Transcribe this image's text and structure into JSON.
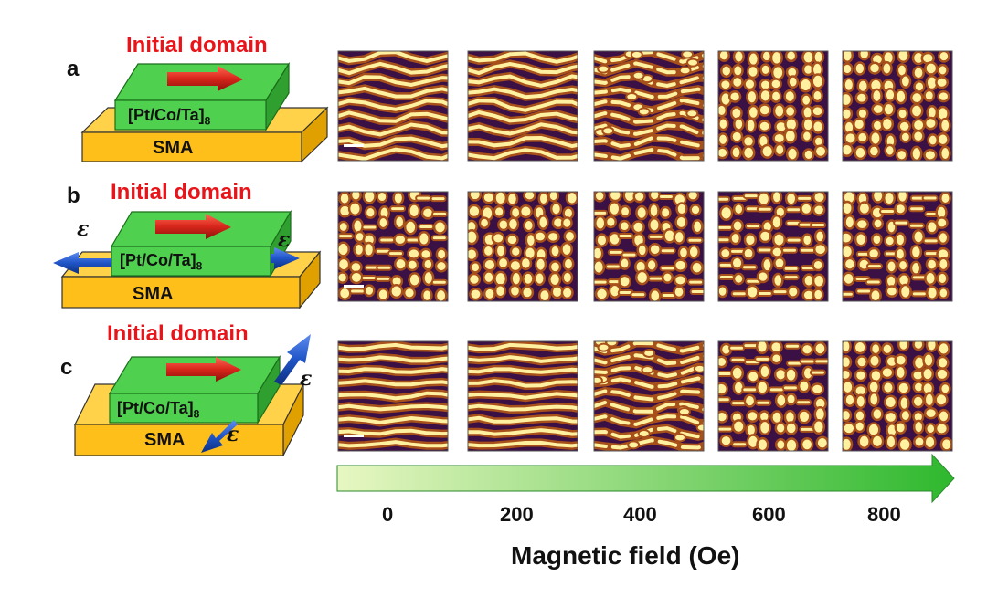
{
  "figure": {
    "panels": [
      {
        "label": "a",
        "title": "Initial domain",
        "layer": "[Pt/Co/Ta]",
        "layer_sub": "8",
        "substrate": "SMA",
        "strain": "none",
        "images": [
          {
            "field": "0",
            "pattern": "stripe-wavy"
          },
          {
            "field": "200",
            "pattern": "stripe-wavy"
          },
          {
            "field": "400",
            "pattern": "stripe-broken"
          },
          {
            "field": "600",
            "pattern": "bubble"
          },
          {
            "field": "800",
            "pattern": "bubble"
          }
        ]
      },
      {
        "label": "b",
        "title": "Initial domain",
        "layer": "[Pt/Co/Ta]",
        "layer_sub": "8",
        "substrate": "SMA",
        "strain": "uniaxial-horizontal",
        "strain_symbol": "ε",
        "images": [
          {
            "field": "0",
            "pattern": "bubble-mixed"
          },
          {
            "field": "200",
            "pattern": "bubble"
          },
          {
            "field": "400",
            "pattern": "bubble-mixed"
          },
          {
            "field": "600",
            "pattern": "bubble-mixed"
          },
          {
            "field": "800",
            "pattern": "bubble-mixed"
          }
        ]
      },
      {
        "label": "c",
        "title": "Initial domain",
        "layer": "[Pt/Co/Ta]",
        "layer_sub": "8",
        "substrate": "SMA",
        "strain": "uniaxial-transverse",
        "strain_symbol": "ε",
        "images": [
          {
            "field": "0",
            "pattern": "stripe-straight"
          },
          {
            "field": "200",
            "pattern": "stripe-straight"
          },
          {
            "field": "400",
            "pattern": "stripe-broken"
          },
          {
            "field": "600",
            "pattern": "bubble-mixed"
          },
          {
            "field": "800",
            "pattern": "bubble"
          }
        ]
      }
    ],
    "field_ticks": [
      "0",
      "200",
      "400",
      "600",
      "800"
    ],
    "axis_title": "Magnetic field (Oe)",
    "colors": {
      "title_red": "#e8141a",
      "film_green": "#4fd04f",
      "substrate_orange": "#ffbf1a",
      "arrow_red": "#d9261c",
      "arrow_blue": "#1f55c7",
      "field_arrow_start": "#e8f7c2",
      "field_arrow_end": "#2eb82e",
      "domain_dark": "#3a1045",
      "domain_mid": "#a8501a",
      "domain_light": "#fff1a0"
    }
  }
}
